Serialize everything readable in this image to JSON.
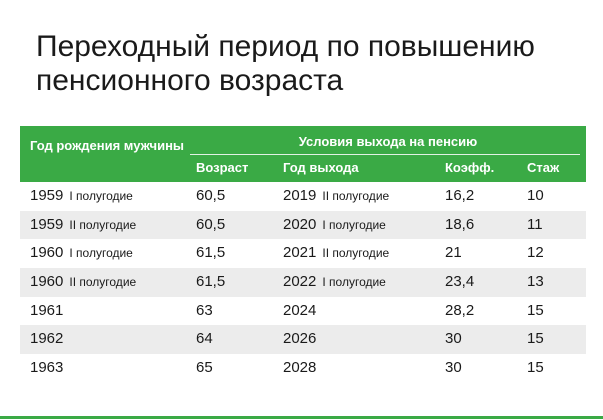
{
  "title_line1": "Переходный период по повышению",
  "title_line2": "пенсионного возраста",
  "header": {
    "birth_year_label": "Год рождения мужчины",
    "group_label": "Условия выхода на пенсию",
    "columns": [
      "Возраст",
      "Год выхода",
      "Коэфф.",
      "Стаж"
    ]
  },
  "rows": [
    {
      "year": "1959",
      "half": "I полугодие",
      "age": "60,5",
      "exit_year": "2019",
      "exit_half": "II полугодие",
      "coef": "16,2",
      "stazh": "10"
    },
    {
      "year": "1959",
      "half": "II полугодие",
      "age": "60,5",
      "exit_year": "2020",
      "exit_half": "I полугодие",
      "coef": "18,6",
      "stazh": "11"
    },
    {
      "year": "1960",
      "half": "I полугодие",
      "age": "61,5",
      "exit_year": "2021",
      "exit_half": "II полугодие",
      "coef": "21",
      "stazh": "12"
    },
    {
      "year": "1960",
      "half": "II полугодие",
      "age": "61,5",
      "exit_year": "2022",
      "exit_half": "I полугодие",
      "coef": "23,4",
      "stazh": "13"
    },
    {
      "year": "1961",
      "half": "",
      "age": "63",
      "exit_year": "2024",
      "exit_half": "",
      "coef": "28,2",
      "stazh": "15"
    },
    {
      "year": "1962",
      "half": "",
      "age": "64",
      "exit_year": "2026",
      "exit_half": "",
      "coef": "30",
      "stazh": "15"
    },
    {
      "year": "1963",
      "half": "",
      "age": "65",
      "exit_year": "2028",
      "exit_half": "",
      "coef": "30",
      "stazh": "15"
    }
  ],
  "colors": {
    "header_bg": "#3aaa45",
    "shaded_row": "#ececec"
  }
}
